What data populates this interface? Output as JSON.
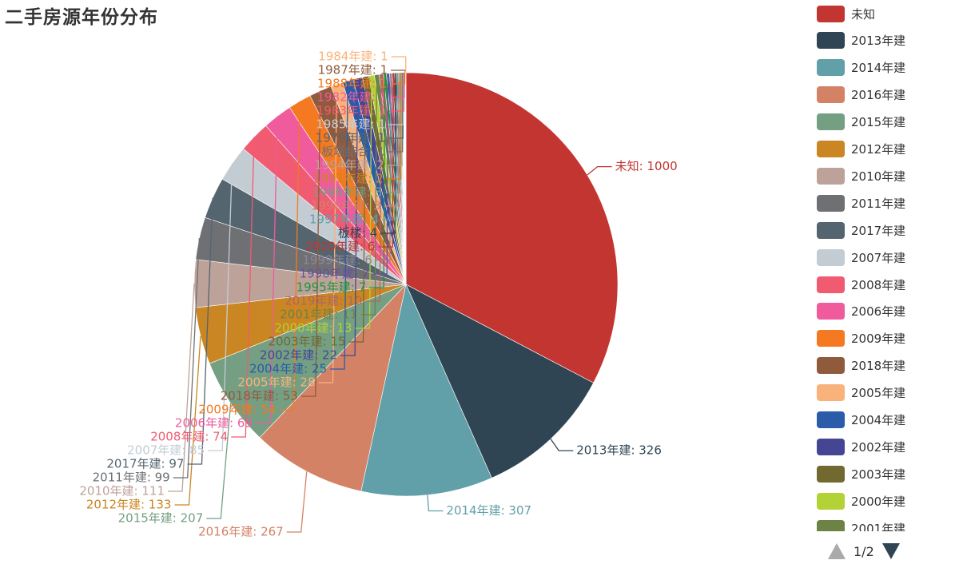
{
  "chart_data": {
    "type": "pie",
    "title": "二手房源年份分布",
    "slices": [
      {
        "name": "未知",
        "value": 1000,
        "color": "#c23531"
      },
      {
        "name": "2013年建",
        "value": 326,
        "color": "#2f4554"
      },
      {
        "name": "2014年建",
        "value": 307,
        "color": "#61a0a8"
      },
      {
        "name": "2016年建",
        "value": 267,
        "color": "#d48265"
      },
      {
        "name": "2015年建",
        "value": 207,
        "color": "#749f83"
      },
      {
        "name": "2012年建",
        "value": 133,
        "color": "#ca8622"
      },
      {
        "name": "2010年建",
        "value": 111,
        "color": "#bda29a"
      },
      {
        "name": "2011年建",
        "value": 99,
        "color": "#6e7074"
      },
      {
        "name": "2017年建",
        "value": 97,
        "color": "#546570"
      },
      {
        "name": "2007年建",
        "value": 85,
        "color": "#c4ccd3"
      },
      {
        "name": "2008年建",
        "value": 74,
        "color": "#f05b72"
      },
      {
        "name": "2006年建",
        "value": 69,
        "color": "#ef5b9c"
      },
      {
        "name": "2009年建",
        "value": 54,
        "color": "#f47920"
      },
      {
        "name": "2018年建",
        "value": 53,
        "color": "#905a3d"
      },
      {
        "name": "2005年建",
        "value": 28,
        "color": "#fab27b"
      },
      {
        "name": "2004年建",
        "value": 25,
        "color": "#2a5caa"
      },
      {
        "name": "2002年建",
        "value": 22,
        "color": "#444693"
      },
      {
        "name": "2003年建",
        "value": 15,
        "color": "#726930"
      },
      {
        "name": "2000年建",
        "value": 13,
        "color": "#b2d235"
      },
      {
        "name": "2001年建",
        "value": 11,
        "color": "#6d8346"
      },
      {
        "name": "2019年建",
        "value": 10,
        "color": "#ac6767"
      },
      {
        "name": "1995年建",
        "value": 7,
        "color": "#1d953f"
      },
      {
        "name": "1990年建",
        "value": 7,
        "color": "#6950a1"
      },
      {
        "name": "1999年建",
        "value": 6,
        "color": "#918597"
      },
      {
        "name": "2020年建",
        "value": 6,
        "color": "#c23531"
      },
      {
        "name": "板楼",
        "value": 4,
        "color": "#2f4554"
      },
      {
        "name": "1997年建",
        "value": 4,
        "color": "#61a0a8"
      },
      {
        "name": "1998年建",
        "value": 3,
        "color": "#d48265"
      },
      {
        "name": "1996年建",
        "value": 3,
        "color": "#749f83"
      },
      {
        "name": "1991年建",
        "value": 2,
        "color": "#ca8622"
      },
      {
        "name": "1994年建",
        "value": 2,
        "color": "#bda29a"
      },
      {
        "name": "板塔结合",
        "value": 1,
        "color": "#6e7074"
      },
      {
        "name": "1979年建",
        "value": 1,
        "color": "#546570"
      },
      {
        "name": "1985年建",
        "value": 1,
        "color": "#c4ccd3"
      },
      {
        "name": "1983年建",
        "value": 1,
        "color": "#f05b72"
      },
      {
        "name": "1982年建",
        "value": 1,
        "color": "#ef5b9c"
      },
      {
        "name": "1988年建",
        "value": 1,
        "color": "#f47920"
      },
      {
        "name": "1987年建",
        "value": 1,
        "color": "#905a3d"
      },
      {
        "name": "1984年建",
        "value": 1,
        "color": "#fab27b"
      }
    ],
    "legend": {
      "placement": "right",
      "visible_items": [
        "未知",
        "2013年建",
        "2014年建",
        "2016年建",
        "2015年建",
        "2012年建",
        "2010年建",
        "2011年建",
        "2017年建",
        "2007年建",
        "2008年建",
        "2006年建",
        "2009年建",
        "2018年建",
        "2005年建",
        "2004年建",
        "2002年建",
        "2003年建",
        "2000年建",
        "2001年建"
      ],
      "page_text": "1/2"
    }
  }
}
